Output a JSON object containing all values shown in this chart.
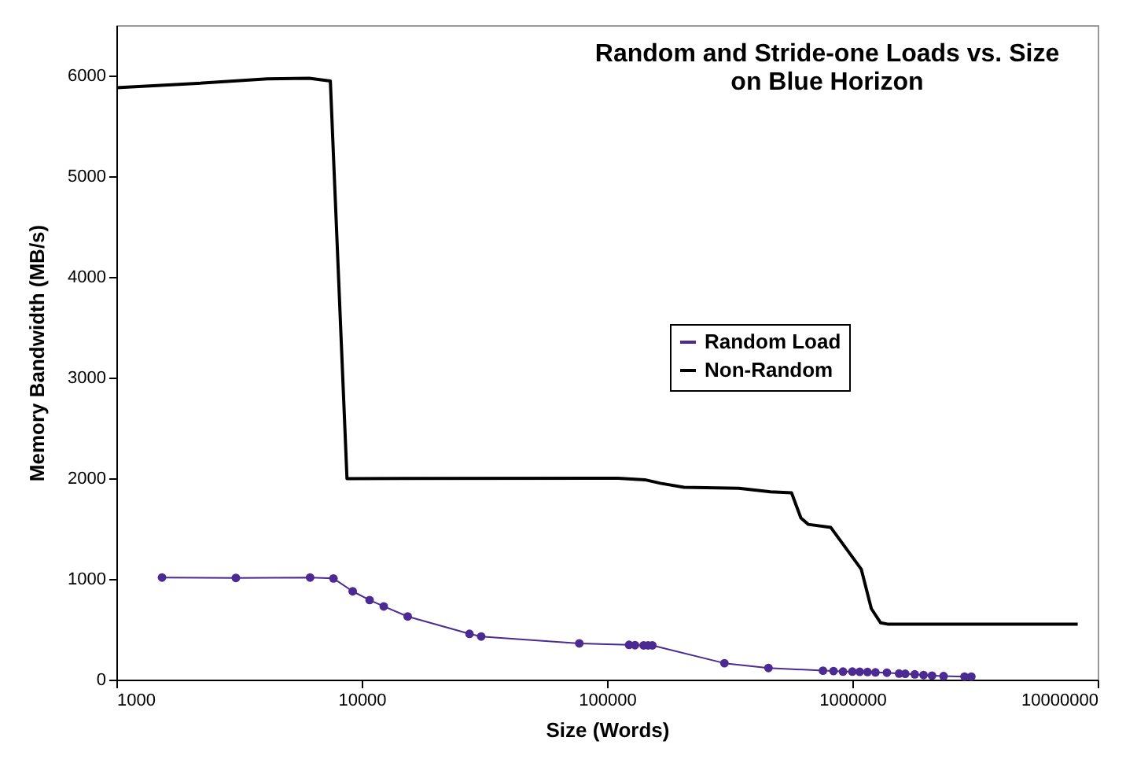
{
  "chart_data": {
    "type": "line",
    "title": "Random and Stride-one Loads vs. Size\non Blue Horizon",
    "xlabel": "Size (Words)",
    "ylabel": "Memory Bandwidth (MB/s)",
    "log": "x",
    "xlim": [
      1000,
      10000000
    ],
    "xticks": [
      1000,
      10000,
      100000,
      1000000,
      10000000
    ],
    "ylim": [
      0,
      6500
    ],
    "yticks": [
      0,
      1000,
      2000,
      3000,
      4000,
      5000,
      6000
    ],
    "grid": false,
    "legend": "right",
    "series": [
      {
        "name": "Random Load",
        "color": "#4b2a91",
        "marker": "circle",
        "x": [
          1535,
          3070,
          6160,
          7670,
          9190,
          10770,
          12300,
          15400,
          27500,
          30700,
          77100,
          123000,
          130000,
          141000,
          147000,
          153000,
          301000,
          455000,
          759000,
          838000,
          916000,
          1000000,
          1072000,
          1153000,
          1242000,
          1383000,
          1550000,
          1643000,
          1796000,
          1951000,
          2112000,
          2354000,
          2865000,
          3055000
        ],
        "values": [
          1014,
          1010,
          1014,
          1005,
          877,
          790,
          727,
          627,
          455,
          428,
          360,
          345,
          342,
          340,
          340,
          340,
          163,
          116,
          89,
          85,
          80,
          80,
          78,
          76,
          72,
          69,
          60,
          58,
          52,
          45,
          40,
          35,
          30,
          30
        ]
      },
      {
        "name": "Non-Random",
        "color": "#000000",
        "marker": "none",
        "x": [
          1000,
          2070,
          4120,
          6110,
          7450,
          8710,
          111000,
          142600,
          165000,
          206000,
          345000,
          464000,
          565000,
          617000,
          661000,
          817000,
          1087000,
          1195000,
          1304000,
          1403000,
          8290000
        ],
        "values": [
          5878,
          5920,
          5967,
          5972,
          5946,
          1997,
          2000,
          1985,
          1950,
          1910,
          1900,
          1865,
          1856,
          1605,
          1542,
          1511,
          1097,
          705,
          564,
          550,
          550
        ]
      }
    ]
  }
}
